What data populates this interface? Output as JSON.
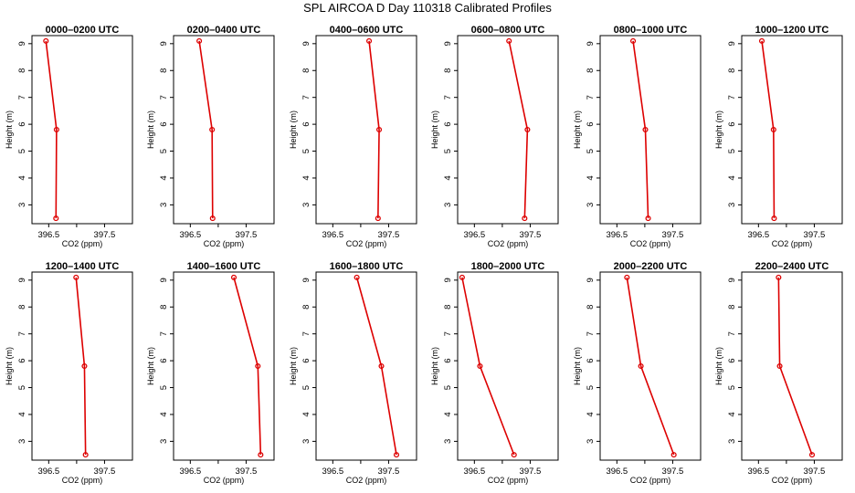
{
  "chart_data": {
    "type": "line",
    "title": "SPL AIRCOA D  Day 110318  Calibrated Profiles",
    "xlabel": "CO2 (ppm)",
    "ylabel": "Height (m)",
    "xlim": [
      396.2,
      398.0
    ],
    "ylim": [
      2.3,
      9.3
    ],
    "xticks": [
      396.5,
      397,
      397.5
    ],
    "xtick_labels": [
      "396.5",
      "",
      "397.5"
    ],
    "yticks": [
      3,
      4,
      5,
      6,
      7,
      8,
      9
    ],
    "ytick_labels": [
      "3",
      "4",
      "5",
      "6",
      "7",
      "8",
      "9"
    ],
    "heights": [
      9.1,
      5.8,
      2.5
    ],
    "line_color": "#dd0000",
    "marker": "open-circle",
    "panels": [
      {
        "title": "0000–0200 UTC",
        "co2": [
          396.45,
          396.64,
          396.63
        ]
      },
      {
        "title": "0200–0400 UTC",
        "co2": [
          396.66,
          396.89,
          396.9
        ]
      },
      {
        "title": "0400–0600 UTC",
        "co2": [
          397.15,
          397.33,
          397.31
        ]
      },
      {
        "title": "0600–0800 UTC",
        "co2": [
          397.12,
          397.45,
          397.4
        ]
      },
      {
        "title": "0800–1000 UTC",
        "co2": [
          396.79,
          397.01,
          397.06
        ]
      },
      {
        "title": "1000–1200 UTC",
        "co2": [
          396.56,
          396.77,
          396.78
        ]
      },
      {
        "title": "1200–1400 UTC",
        "co2": [
          396.99,
          397.14,
          397.16
        ]
      },
      {
        "title": "1400–1600 UTC",
        "co2": [
          397.28,
          397.71,
          397.76
        ]
      },
      {
        "title": "1600–1800 UTC",
        "co2": [
          396.93,
          397.37,
          397.64
        ]
      },
      {
        "title": "1800–2000 UTC",
        "co2": [
          396.28,
          396.6,
          397.21
        ]
      },
      {
        "title": "2000–2200 UTC",
        "co2": [
          396.68,
          396.93,
          397.52
        ]
      },
      {
        "title": "2200–2400 UTC",
        "co2": [
          396.86,
          396.88,
          397.46
        ]
      }
    ]
  }
}
